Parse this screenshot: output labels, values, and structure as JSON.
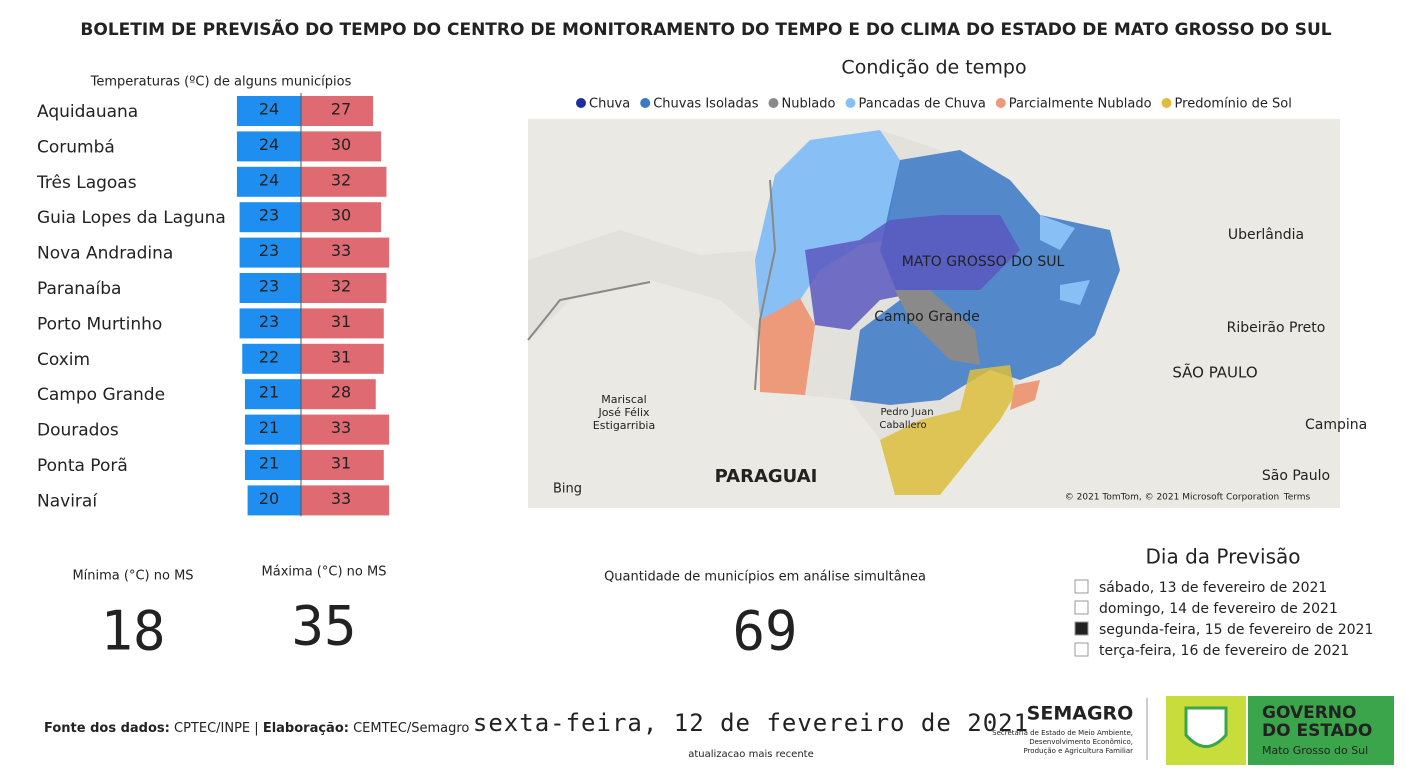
{
  "header": {
    "title": "BOLETIM DE PREVISÃO DO TEMPO DO CENTRO DE MONITORAMENTO DO TEMPO E DO CLIMA DO ESTADO DE MATO GROSSO DO SUL"
  },
  "chart_data": {
    "type": "diverging-bar",
    "title": "Temperaturas (ºC) de alguns municípios",
    "categories": [
      "Aquidauana",
      "Corumbá",
      "Três Lagoas",
      "Guia Lopes da Laguna",
      "Nova Andradina",
      "Paranaíba",
      "Porto Murtinho",
      "Coxim",
      "Campo Grande",
      "Dourados",
      "Ponta Porã",
      "Naviraí"
    ],
    "series": [
      {
        "color": "#1e8ff0",
        "values": [
          24,
          24,
          24,
          23,
          23,
          23,
          23,
          22,
          21,
          21,
          21,
          20
        ]
      },
      {
        "color": "#e06a72",
        "values": [
          27,
          30,
          32,
          30,
          33,
          32,
          31,
          31,
          28,
          33,
          31,
          33
        ]
      }
    ]
  },
  "map": {
    "title": "Condição de tempo",
    "legend": [
      {
        "name": "Chuva",
        "color": "#1c2f9c"
      },
      {
        "name": "Chuvas Isoladas",
        "color": "#3a78c8"
      },
      {
        "name": "Nublado",
        "color": "#8a8a8a"
      },
      {
        "name": "Pancadas de Chuva",
        "color": "#88c0f5"
      },
      {
        "name": "Parcialmente Nublado",
        "color": "#ec9a7a"
      },
      {
        "name": "Predomínio de Sol",
        "color": "#dcbe3c"
      }
    ],
    "labels": [
      "MATO GROSSO DO SUL",
      "Campo Grande",
      "Pedro Juan",
      "Caballero",
      "PARAGUAI",
      "Mariscal",
      "José Félix",
      "Estigarribia",
      "Uberlândia",
      "Ribeirão Preto",
      "SÃO PAULO",
      "Campina",
      "São Paulo",
      "Bing",
      "© 2021 TomTom, © 2021 Microsoft Corporation",
      "Terms"
    ]
  },
  "cards": [
    {
      "label": "Mínima (°C) no MS",
      "value": 18
    },
    {
      "label": "Máxima (°C) no MS",
      "value": 35
    },
    {
      "label": "Quantidade de municípios em análise simultânea",
      "value": 69
    }
  ],
  "slicer": {
    "title": "Dia da Previsão",
    "items": [
      {
        "label": "sábado, 13 de fevereiro de 2021",
        "selected": false
      },
      {
        "label": "domingo, 14 de fevereiro de 2021",
        "selected": false
      },
      {
        "label": "segunda-feira, 15 de fevereiro de 2021",
        "selected": true
      },
      {
        "label": "terça-feira, 16 de fevereiro de 2021",
        "selected": false
      }
    ]
  },
  "footer": {
    "source_label": "Fonte dos dados:",
    "source": "CPTEC/INPE",
    "separator": "|",
    "author_label": "Elaboração:",
    "author": "CEMTEC/Semagro",
    "date": "sexta-feira, 12 de fevereiro de 2021",
    "date_note": "atualizacao mais recente"
  },
  "logos": {
    "semagro": "SEMAGRO",
    "semagro_lines": [
      "Secretaria de Estado de Meio Ambiente,",
      "Desenvolvimento Econômico,",
      "Produção e Agricultura Familiar"
    ],
    "governo_lines": [
      "GOVERNO",
      "DO ESTADO"
    ],
    "governo_sub": "Mato Grosso do Sul"
  }
}
